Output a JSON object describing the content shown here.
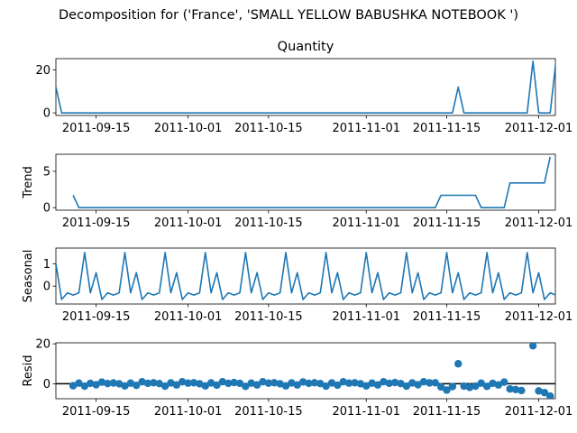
{
  "figure": {
    "suptitle": "Decomposition for ('France', 'SMALL YELLOW BABUSHKA NOTEBOOK ')"
  },
  "colors": {
    "series": "#1f77b4",
    "axis": "#000000",
    "zero_line": "#000000"
  },
  "x_axis": {
    "start_date": "2011-09-08",
    "end_date": "2011-12-03",
    "tick_labels": [
      "2011-09-15",
      "2011-10-01",
      "2011-10-15",
      "2011-11-01",
      "2011-11-15",
      "2011-12-01"
    ]
  },
  "chart_data": [
    {
      "type": "line",
      "title": "Quantity",
      "ylabel": "",
      "ylim": [
        -1.2,
        25.2
      ],
      "yticks": [
        0,
        20
      ],
      "series": [
        {
          "points": [
            [
              "2011-09-08",
              12
            ],
            [
              "2011-09-09",
              0
            ],
            [
              "2011-11-16",
              0
            ],
            [
              "2011-11-17",
              12
            ],
            [
              "2011-11-18",
              0
            ],
            [
              "2011-11-29",
              0
            ],
            [
              "2011-11-30",
              24
            ],
            [
              "2011-12-01",
              0
            ],
            [
              "2011-12-02",
              0
            ],
            [
              "2011-12-03",
              0
            ],
            [
              "2011-12-04",
              24
            ]
          ]
        }
      ]
    },
    {
      "type": "line",
      "title": "",
      "ylabel": "Trend",
      "ylim": [
        -0.35,
        7.35
      ],
      "yticks": [
        0,
        5
      ],
      "series": [
        {
          "points": [
            [
              "2011-09-11",
              1.7
            ],
            [
              "2011-09-12",
              0
            ],
            [
              "2011-11-13",
              0
            ],
            [
              "2011-11-14",
              1.7
            ],
            [
              "2011-11-20",
              1.7
            ],
            [
              "2011-11-21",
              0
            ],
            [
              "2011-11-25",
              0
            ],
            [
              "2011-11-26",
              3.4
            ],
            [
              "2011-12-02",
              3.4
            ],
            [
              "2011-12-03",
              7
            ]
          ]
        }
      ]
    },
    {
      "type": "line",
      "title": "",
      "ylabel": "Seasonal",
      "ylim": [
        -0.8,
        1.7
      ],
      "yticks": [
        0,
        1
      ],
      "series": [
        {
          "values_by_day_from_start": [
            1.0,
            -0.6,
            -0.3,
            -0.4,
            -0.3,
            1.5,
            -0.3,
            0.6,
            -0.6,
            -0.3,
            -0.4,
            -0.3,
            1.5,
            -0.3,
            0.6,
            -0.6,
            -0.3,
            -0.4,
            -0.3,
            1.5,
            -0.3,
            0.6,
            -0.6,
            -0.3,
            -0.4,
            -0.3,
            1.5,
            -0.3,
            0.6,
            -0.6,
            -0.3,
            -0.4,
            -0.3,
            1.5,
            -0.3,
            0.6,
            -0.6,
            -0.3,
            -0.4,
            -0.3,
            1.5,
            -0.3,
            0.6,
            -0.6,
            -0.3,
            -0.4,
            -0.3,
            1.5,
            -0.3,
            0.6,
            -0.6,
            -0.3,
            -0.4,
            -0.3,
            1.5,
            -0.3,
            0.6,
            -0.6,
            -0.3,
            -0.4,
            -0.3,
            1.5,
            -0.3,
            0.6,
            -0.6,
            -0.3,
            -0.4,
            -0.3,
            1.5,
            -0.3,
            0.6,
            -0.6,
            -0.3,
            -0.4,
            -0.3,
            1.5,
            -0.3,
            0.6,
            -0.6,
            -0.3,
            -0.4,
            -0.3,
            1.5,
            -0.3,
            0.6,
            -0.6,
            -0.3,
            -0.4
          ]
        }
      ]
    },
    {
      "type": "scatter",
      "title": "",
      "ylabel": "Resid",
      "ylim": [
        -7.5,
        20.5
      ],
      "yticks": [
        0,
        20
      ],
      "zero_line": true,
      "series": [
        {
          "points": [
            [
              "2011-09-11",
              -1
            ],
            [
              "2011-09-12",
              0.3
            ],
            [
              "2011-09-13",
              -1.2
            ],
            [
              "2011-09-14",
              0.2
            ],
            [
              "2011-09-15",
              -0.5
            ],
            [
              "2011-09-16",
              0.8
            ],
            [
              "2011-09-17",
              0.1
            ],
            [
              "2011-09-18",
              0.4
            ],
            [
              "2011-09-19",
              0
            ],
            [
              "2011-09-20",
              -1.1
            ],
            [
              "2011-09-21",
              0.3
            ],
            [
              "2011-09-22",
              -0.8
            ],
            [
              "2011-09-23",
              1
            ],
            [
              "2011-09-24",
              0.2
            ],
            [
              "2011-09-25",
              0.5
            ],
            [
              "2011-09-26",
              0.1
            ],
            [
              "2011-09-27",
              -1.2
            ],
            [
              "2011-09-28",
              0.4
            ],
            [
              "2011-09-29",
              -0.6
            ],
            [
              "2011-09-30",
              1
            ],
            [
              "2011-10-01",
              0.3
            ],
            [
              "2011-10-02",
              0.5
            ],
            [
              "2011-10-03",
              0
            ],
            [
              "2011-10-04",
              -1.1
            ],
            [
              "2011-10-05",
              0.4
            ],
            [
              "2011-10-06",
              -0.7
            ],
            [
              "2011-10-07",
              1
            ],
            [
              "2011-10-08",
              0.2
            ],
            [
              "2011-10-09",
              0.6
            ],
            [
              "2011-10-10",
              0.2
            ],
            [
              "2011-10-11",
              -1.3
            ],
            [
              "2011-10-12",
              0.3
            ],
            [
              "2011-10-13",
              -0.6
            ],
            [
              "2011-10-14",
              1
            ],
            [
              "2011-10-15",
              0.3
            ],
            [
              "2011-10-16",
              0.5
            ],
            [
              "2011-10-17",
              0
            ],
            [
              "2011-10-18",
              -1.1
            ],
            [
              "2011-10-19",
              0.4
            ],
            [
              "2011-10-20",
              -0.6
            ],
            [
              "2011-10-21",
              0.9
            ],
            [
              "2011-10-22",
              0.2
            ],
            [
              "2011-10-23",
              0.5
            ],
            [
              "2011-10-24",
              0.1
            ],
            [
              "2011-10-25",
              -1.2
            ],
            [
              "2011-10-26",
              0.4
            ],
            [
              "2011-10-27",
              -0.7
            ],
            [
              "2011-10-28",
              1
            ],
            [
              "2011-10-29",
              0.3
            ],
            [
              "2011-10-30",
              0.5
            ],
            [
              "2011-10-31",
              0
            ],
            [
              "2011-11-01",
              -1.1
            ],
            [
              "2011-11-02",
              0.3
            ],
            [
              "2011-11-03",
              -0.6
            ],
            [
              "2011-11-04",
              1
            ],
            [
              "2011-11-05",
              0.2
            ],
            [
              "2011-11-06",
              0.6
            ],
            [
              "2011-11-07",
              0.1
            ],
            [
              "2011-11-08",
              -1.2
            ],
            [
              "2011-11-09",
              0.4
            ],
            [
              "2011-11-10",
              -0.5
            ],
            [
              "2011-11-11",
              1
            ],
            [
              "2011-11-12",
              0.4
            ],
            [
              "2011-11-13",
              0.5
            ],
            [
              "2011-11-14",
              -1.6
            ],
            [
              "2011-11-15",
              -3.2
            ],
            [
              "2011-11-16",
              -1.4
            ],
            [
              "2011-11-17",
              10
            ],
            [
              "2011-11-18",
              -1.2
            ],
            [
              "2011-11-19",
              -1.8
            ],
            [
              "2011-11-20",
              -1.2
            ],
            [
              "2011-11-21",
              0.3
            ],
            [
              "2011-11-22",
              -1.3
            ],
            [
              "2011-11-23",
              0.2
            ],
            [
              "2011-11-24",
              -0.6
            ],
            [
              "2011-11-25",
              0.8
            ],
            [
              "2011-11-26",
              -2.6
            ],
            [
              "2011-11-27",
              -2.9
            ],
            [
              "2011-11-28",
              -3.4
            ],
            [
              "2011-11-30",
              19
            ],
            [
              "2011-12-01",
              -3.6
            ],
            [
              "2011-12-02",
              -4.4
            ],
            [
              "2011-12-03",
              -6.2
            ]
          ]
        }
      ]
    }
  ]
}
